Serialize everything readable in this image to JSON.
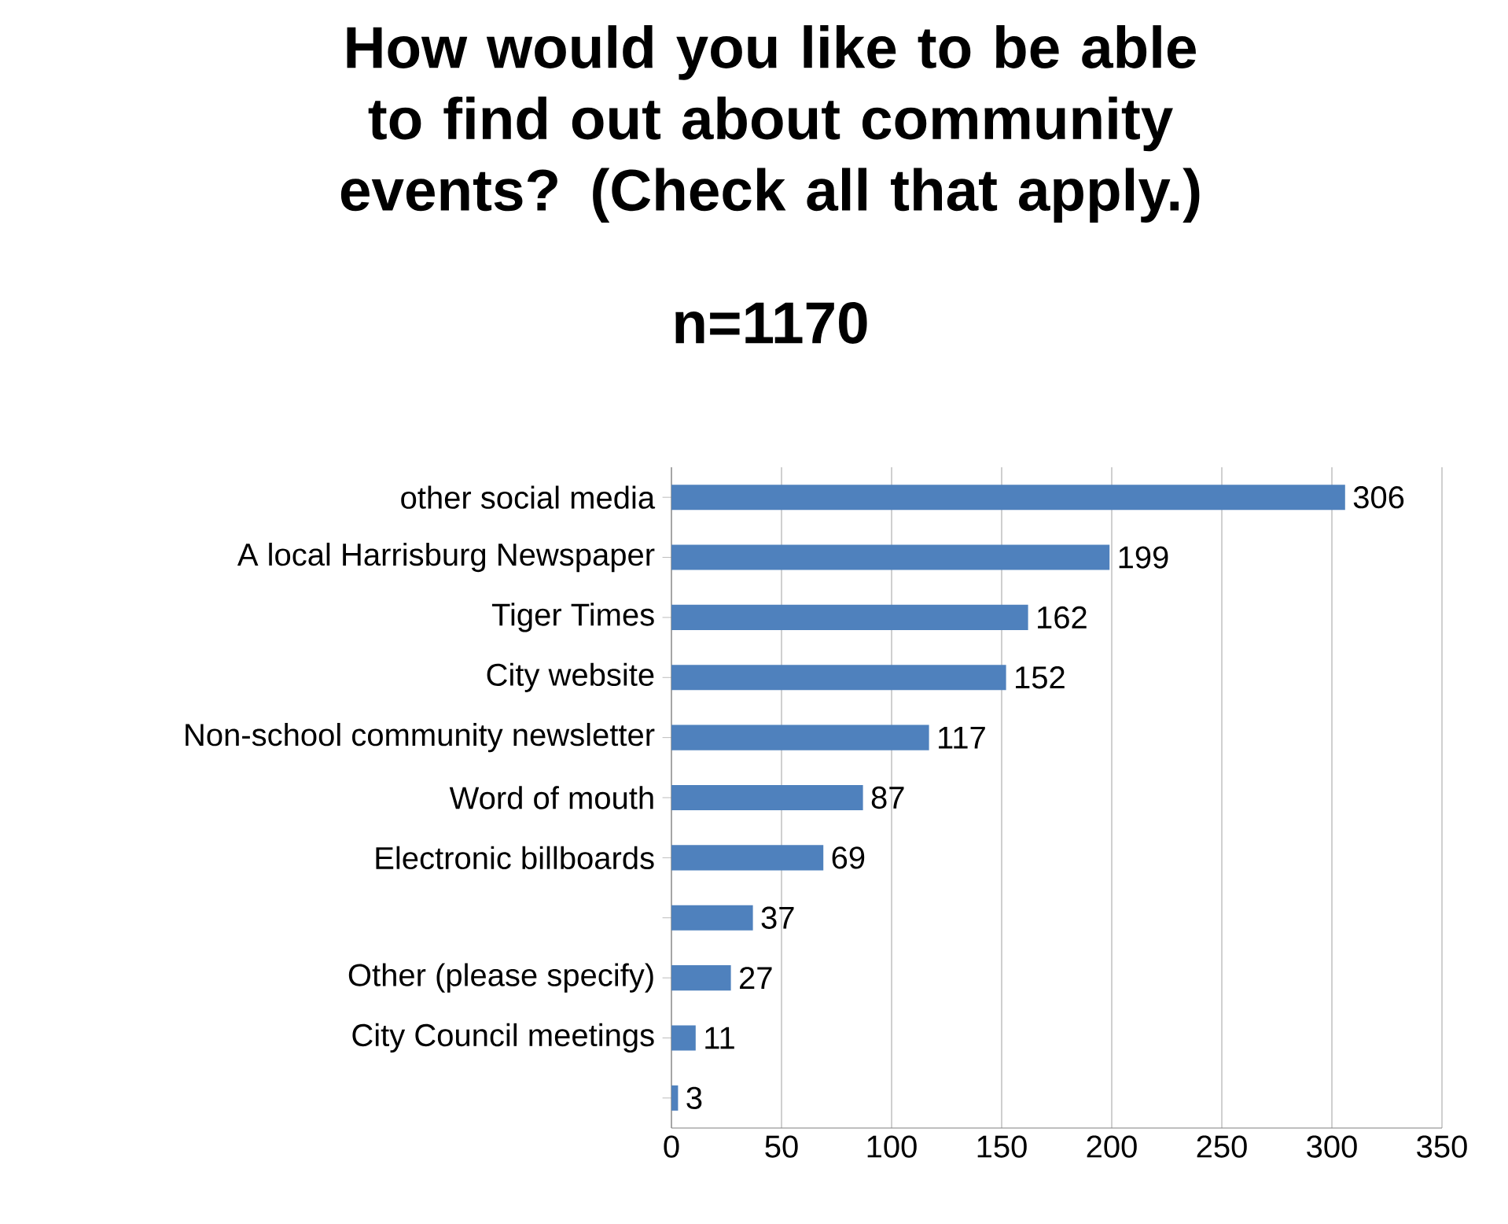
{
  "chart_data": {
    "type": "bar",
    "orientation": "horizontal",
    "title": "How would you like to be able to find out about community events? (Check all that apply.)",
    "subtitle": "n=1170",
    "categories": [
      "other social media",
      "A local Harrisburg Newspaper",
      "Tiger Times",
      "City website",
      "Non-school community newsletter",
      "Word of mouth",
      "Electronic billboards",
      null,
      "Other (please specify)",
      "City Council meetings",
      null
    ],
    "values": [
      306,
      199,
      162,
      152,
      117,
      87,
      69,
      37,
      27,
      11,
      3
    ],
    "color": "#4f81bd",
    "xlim": [
      0,
      350
    ],
    "xticks": [
      0,
      50,
      100,
      150,
      200,
      250,
      300,
      350
    ],
    "grid": "x",
    "data_labels": true
  }
}
